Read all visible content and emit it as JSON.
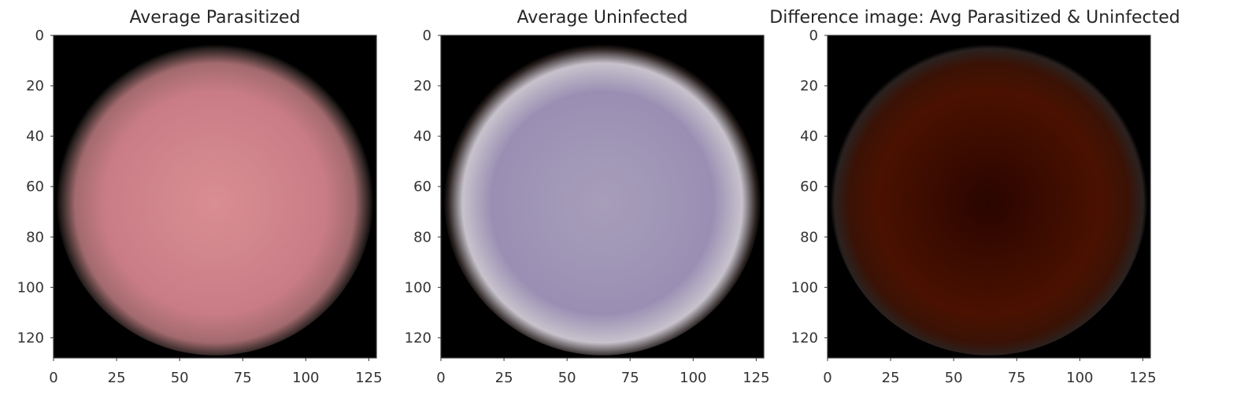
{
  "chart_data": [
    {
      "type": "heatmap",
      "title": "Average Parasitized",
      "xlabel": "",
      "ylabel": "",
      "xlim": [
        0,
        128
      ],
      "ylim": [
        128,
        0
      ],
      "xticks": [
        0,
        25,
        50,
        75,
        100,
        125
      ],
      "yticks": [
        0,
        20,
        40,
        60,
        80,
        100,
        120
      ],
      "colors": {
        "center": "#d98e93",
        "mid": "#c97c86",
        "edge": "#a26a6e",
        "bg": "#000000"
      },
      "grid": false
    },
    {
      "type": "heatmap",
      "title": "Average Uninfected",
      "xlabel": "",
      "ylabel": "",
      "xlim": [
        0,
        128
      ],
      "ylim": [
        128,
        0
      ],
      "xticks": [
        0,
        25,
        50,
        75,
        100,
        125
      ],
      "yticks": [
        0,
        20,
        40,
        60,
        80,
        100,
        120
      ],
      "colors": {
        "center": "#a79eba",
        "mid": "#9a8fb3",
        "edge": "#c7c2cc",
        "bg": "#000000"
      },
      "grid": false
    },
    {
      "type": "heatmap",
      "title": "Difference image: Avg Parasitized & Uninfected",
      "xlabel": "",
      "ylabel": "",
      "xlim": [
        0,
        128
      ],
      "ylim": [
        128,
        0
      ],
      "xticks": [
        0,
        25,
        50,
        75,
        100,
        125
      ],
      "yticks": [
        0,
        20,
        40,
        60,
        80,
        100,
        120
      ],
      "colors": {
        "center": "#2a0500",
        "mid": "#4a1100",
        "edge": "#3a1205",
        "bg": "#000000"
      },
      "grid": false
    }
  ]
}
